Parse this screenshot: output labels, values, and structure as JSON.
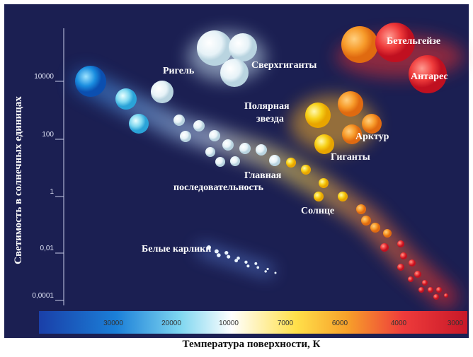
{
  "y_axis": {
    "title": "Светимость в солнечных единицах",
    "ticks": [
      "10000",
      "100",
      "1",
      "0,01",
      "0,0001"
    ]
  },
  "x_axis": {
    "title": "Температура поверхности, К",
    "ticks": [
      "30000",
      "20000",
      "10000",
      "7000",
      "6000",
      "4000",
      "3000"
    ]
  },
  "labels": {
    "rigel": "Ригель",
    "supergiants": "Сверхгиганты",
    "betelgeuse": "Бетельгейзе",
    "antares": "Антарес",
    "polaris_1": "Полярная",
    "polaris_2": "звезда",
    "arcturus": "Арктур",
    "giants": "Гиганты",
    "main_sequence_1": "Главная",
    "main_sequence_2": "последовательность",
    "sun": "Солнце",
    "white_dwarfs": "Белые карлики"
  }
}
